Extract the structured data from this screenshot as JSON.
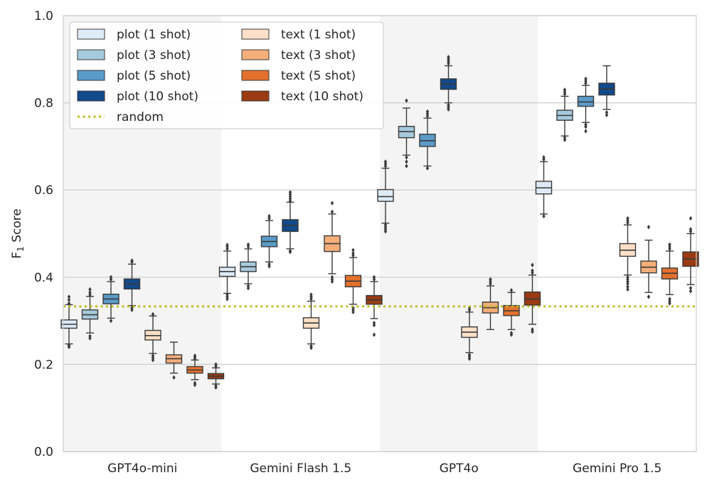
{
  "chart_data": {
    "type": "box",
    "title": "",
    "xlabel": "",
    "ylabel": "F",
    "ylabel_subscript": "1",
    "ylabel_suffix": " Score",
    "ylim": [
      0.0,
      1.0
    ],
    "yticks": [
      "0.0",
      "0.2",
      "0.4",
      "0.6",
      "0.8",
      "1.0"
    ],
    "grid": "horizontal",
    "legend_position": "top-left",
    "categories": [
      "GPT4o-mini",
      "Gemini Flash 1.5",
      "GPT4o",
      "Gemini Pro 1.5"
    ],
    "shaded_categories": [
      true,
      false,
      true,
      false
    ],
    "reference_line": {
      "name": "random",
      "value": 0.333,
      "color": "#bcbd22"
    },
    "series": [
      {
        "name": "plot (1 shot)",
        "color": "#deebf7",
        "boxes": [
          {
            "q1": 0.283,
            "median": 0.292,
            "q3": 0.302,
            "wlo": 0.247,
            "whi": 0.337,
            "fliers": [
              0.24,
              0.244,
              0.34,
              0.348,
              0.355
            ]
          },
          {
            "q1": 0.402,
            "median": 0.413,
            "q3": 0.423,
            "wlo": 0.363,
            "whi": 0.46,
            "fliers": [
              0.35,
              0.355,
              0.36,
              0.465,
              0.47,
              0.474
            ]
          },
          {
            "q1": 0.574,
            "median": 0.585,
            "q3": 0.601,
            "wlo": 0.524,
            "whi": 0.65,
            "fliers": [
              0.505,
              0.51,
              0.515,
              0.52,
              0.655,
              0.66,
              0.665
            ]
          },
          {
            "q1": 0.591,
            "median": 0.605,
            "q3": 0.62,
            "wlo": 0.545,
            "whi": 0.665,
            "fliers": [
              0.54,
              0.67,
              0.675
            ]
          }
        ]
      },
      {
        "name": "plot (3 shot)",
        "color": "#a6cadd",
        "boxes": [
          {
            "q1": 0.304,
            "median": 0.314,
            "q3": 0.325,
            "wlo": 0.272,
            "whi": 0.356,
            "fliers": [
              0.26,
              0.265,
              0.36,
              0.365,
              0.372
            ]
          },
          {
            "q1": 0.413,
            "median": 0.424,
            "q3": 0.435,
            "wlo": 0.385,
            "whi": 0.465,
            "fliers": [
              0.375,
              0.38,
              0.47,
              0.475
            ]
          },
          {
            "q1": 0.72,
            "median": 0.734,
            "q3": 0.746,
            "wlo": 0.68,
            "whi": 0.788,
            "fliers": [
              0.655,
              0.665,
              0.675,
              0.805
            ]
          },
          {
            "q1": 0.76,
            "median": 0.771,
            "q3": 0.783,
            "wlo": 0.724,
            "whi": 0.815,
            "fliers": [
              0.715,
              0.72,
              0.82,
              0.825,
              0.83
            ]
          }
        ]
      },
      {
        "name": "plot (5 shot)",
        "color": "#5a9bc9",
        "boxes": [
          {
            "q1": 0.339,
            "median": 0.35,
            "q3": 0.361,
            "wlo": 0.306,
            "whi": 0.39,
            "fliers": [
              0.3,
              0.395,
              0.4
            ]
          },
          {
            "q1": 0.47,
            "median": 0.482,
            "q3": 0.494,
            "wlo": 0.435,
            "whi": 0.53,
            "fliers": [
              0.425,
              0.43,
              0.535,
              0.54
            ]
          },
          {
            "q1": 0.7,
            "median": 0.713,
            "q3": 0.728,
            "wlo": 0.655,
            "whi": 0.765,
            "fliers": [
              0.65,
              0.77,
              0.775,
              0.78
            ]
          },
          {
            "q1": 0.792,
            "median": 0.802,
            "q3": 0.815,
            "wlo": 0.755,
            "whi": 0.84,
            "fliers": [
              0.735,
              0.745,
              0.75,
              0.845,
              0.85,
              0.855
            ]
          }
        ]
      },
      {
        "name": "plot (10 shot)",
        "color": "#124a8a",
        "boxes": [
          {
            "q1": 0.373,
            "median": 0.384,
            "q3": 0.396,
            "wlo": 0.335,
            "whi": 0.43,
            "fliers": [
              0.325,
              0.33,
              0.435,
              0.438
            ]
          },
          {
            "q1": 0.505,
            "median": 0.519,
            "q3": 0.532,
            "wlo": 0.465,
            "whi": 0.572,
            "fliers": [
              0.458,
              0.46,
              0.575,
              0.58,
              0.585,
              0.59,
              0.595
            ]
          },
          {
            "q1": 0.831,
            "median": 0.843,
            "q3": 0.855,
            "wlo": 0.8,
            "whi": 0.885,
            "fliers": [
              0.785,
              0.79,
              0.795,
              0.89,
              0.895,
              0.9,
              0.905
            ]
          },
          {
            "q1": 0.818,
            "median": 0.832,
            "q3": 0.845,
            "wlo": 0.785,
            "whi": 0.885,
            "fliers": [
              0.772,
              0.778
            ]
          }
        ]
      },
      {
        "name": "text (1 shot)",
        "color": "#fde0c7",
        "boxes": [
          {
            "q1": 0.256,
            "median": 0.266,
            "q3": 0.278,
            "wlo": 0.225,
            "whi": 0.311,
            "fliers": [
              0.21,
              0.215,
              0.22,
              0.315
            ]
          },
          {
            "q1": 0.283,
            "median": 0.295,
            "q3": 0.307,
            "wlo": 0.247,
            "whi": 0.345,
            "fliers": [
              0.238,
              0.242,
              0.35,
              0.355,
              0.36
            ]
          },
          {
            "q1": 0.262,
            "median": 0.274,
            "q3": 0.286,
            "wlo": 0.227,
            "whi": 0.32,
            "fliers": [
              0.213,
              0.218,
              0.222,
              0.325,
              0.33
            ]
          },
          {
            "q1": 0.448,
            "median": 0.462,
            "q3": 0.477,
            "wlo": 0.405,
            "whi": 0.52,
            "fliers": [
              0.372,
              0.378,
              0.385,
              0.39,
              0.395,
              0.4,
              0.525,
              0.53,
              0.535
            ]
          }
        ]
      },
      {
        "name": "text (3 shot)",
        "color": "#f4ae7a",
        "boxes": [
          {
            "q1": 0.203,
            "median": 0.213,
            "q3": 0.222,
            "wlo": 0.18,
            "whi": 0.251,
            "fliers": [
              0.17
            ]
          },
          {
            "q1": 0.459,
            "median": 0.477,
            "q3": 0.495,
            "wlo": 0.408,
            "whi": 0.545,
            "fliers": [
              0.39,
              0.395,
              0.4,
              0.55,
              0.57
            ]
          },
          {
            "q1": 0.318,
            "median": 0.33,
            "q3": 0.343,
            "wlo": 0.28,
            "whi": 0.38,
            "fliers": [
              0.385,
              0.39,
              0.395
            ]
          },
          {
            "q1": 0.41,
            "median": 0.423,
            "q3": 0.437,
            "wlo": 0.365,
            "whi": 0.485,
            "fliers": [
              0.355,
              0.515
            ]
          }
        ]
      },
      {
        "name": "text (5 shot)",
        "color": "#e3712d",
        "boxes": [
          {
            "q1": 0.18,
            "median": 0.187,
            "q3": 0.195,
            "wlo": 0.165,
            "whi": 0.21,
            "fliers": [
              0.153,
              0.157,
              0.213,
              0.217,
              0.22
            ]
          },
          {
            "q1": 0.378,
            "median": 0.391,
            "q3": 0.404,
            "wlo": 0.338,
            "whi": 0.445,
            "fliers": [
              0.32,
              0.325,
              0.33,
              0.45,
              0.455,
              0.462
            ]
          },
          {
            "q1": 0.312,
            "median": 0.323,
            "q3": 0.335,
            "wlo": 0.28,
            "whi": 0.365,
            "fliers": [
              0.268,
              0.272,
              0.37
            ]
          },
          {
            "q1": 0.396,
            "median": 0.409,
            "q3": 0.421,
            "wlo": 0.36,
            "whi": 0.46,
            "fliers": [
              0.34,
              0.345,
              0.35,
              0.465,
              0.47,
              0.475
            ]
          }
        ]
      },
      {
        "name": "text (10 shot)",
        "color": "#9a3b12",
        "boxes": [
          {
            "q1": 0.167,
            "median": 0.173,
            "q3": 0.179,
            "wlo": 0.155,
            "whi": 0.192,
            "fliers": [
              0.147,
              0.151,
              0.196,
              0.2
            ]
          },
          {
            "q1": 0.338,
            "median": 0.348,
            "q3": 0.358,
            "wlo": 0.305,
            "whi": 0.39,
            "fliers": [
              0.268,
              0.29,
              0.295,
              0.395,
              0.4
            ]
          },
          {
            "q1": 0.336,
            "median": 0.35,
            "q3": 0.366,
            "wlo": 0.292,
            "whi": 0.405,
            "fliers": [
              0.275,
              0.28,
              0.41,
              0.415,
              0.428
            ]
          },
          {
            "q1": 0.425,
            "median": 0.442,
            "q3": 0.458,
            "wlo": 0.383,
            "whi": 0.5,
            "fliers": [
              0.368,
              0.375,
              0.505,
              0.51,
              0.535
            ]
          }
        ]
      }
    ]
  }
}
